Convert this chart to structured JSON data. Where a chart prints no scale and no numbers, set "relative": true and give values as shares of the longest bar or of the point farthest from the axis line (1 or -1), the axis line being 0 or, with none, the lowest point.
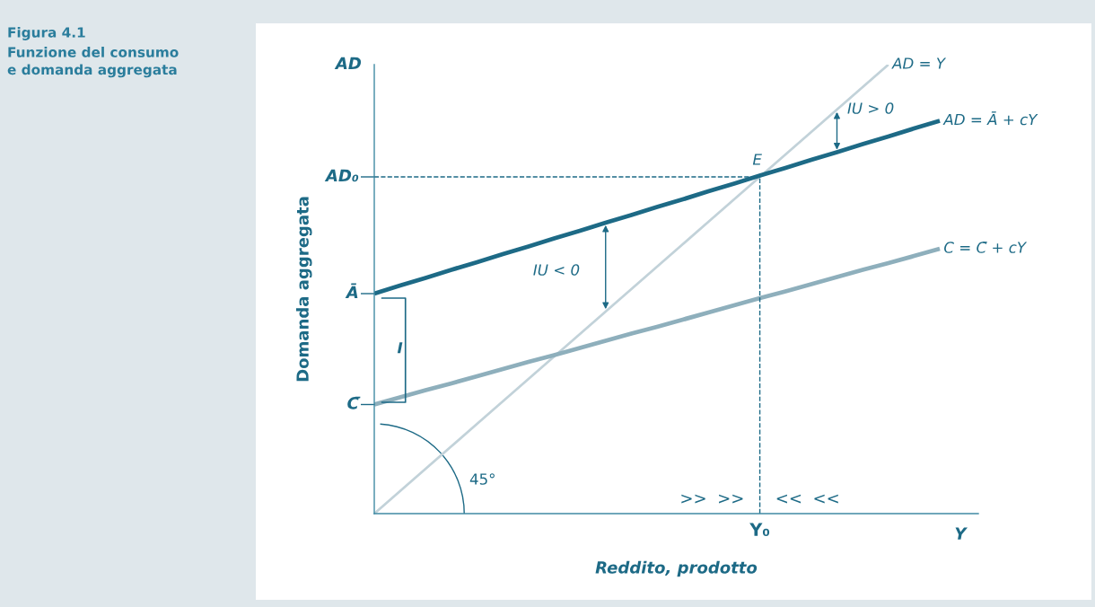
{
  "chart_data": {
    "type": "line",
    "title": "Figura 4.1",
    "subtitle": "Funzione del consumo\ne domanda aggregata",
    "xlabel": "Reddito, prodotto",
    "ylabel": "Domanda aggregata",
    "relative": true,
    "categories": [
      null,
      null,
      null,
      null,
      null,
      null,
      null,
      null,
      null,
      null,
      null,
      null,
      null,
      null,
      null,
      null,
      null,
      null,
      null,
      null,
      null,
      null,
      null,
      null
    ],
    "series": [
      {
        "name": "AD = Y",
        "color": "#c2d2d9",
        "values": [
          0,
          0.05,
          0.1,
          0.15,
          0.2,
          0.25,
          0.3,
          0.35,
          0.4,
          0.45,
          0.5,
          0.55,
          0.6,
          0.65,
          0.7,
          0.75,
          0.8,
          0.85,
          0.9,
          0.95,
          1.0,
          null,
          null,
          null
        ]
      },
      {
        "name": "AD = Ā + cY",
        "color": "#1d6a86",
        "values": [
          0.49,
          0.508,
          0.525,
          0.543,
          0.56,
          0.578,
          0.595,
          0.613,
          0.63,
          0.648,
          0.665,
          0.683,
          0.7,
          0.718,
          0.735,
          0.753,
          0.77,
          0.788,
          0.805,
          0.823,
          0.84,
          0.858,
          0.875,
          null
        ]
      },
      {
        "name": "C = C̄ + cY",
        "color": "#8eafbc",
        "values": [
          0.243,
          0.259,
          0.275,
          0.29,
          0.306,
          0.322,
          0.338,
          0.353,
          0.369,
          0.385,
          0.401,
          0.416,
          0.432,
          0.448,
          0.464,
          0.48,
          0.495,
          0.511,
          0.527,
          0.543,
          0.558,
          0.574,
          0.59,
          null
        ]
      }
    ],
    "ref_lines": [
      {
        "axis": "y",
        "value": 0.75,
        "label": "AD₀",
        "line_style": "dashed",
        "color": "#1d6a86"
      },
      {
        "axis": "x",
        "value": "Y₀",
        "line_style": "dashed",
        "color": "#1d6a86"
      }
    ],
    "annotations": [
      "Ā",
      "C̄",
      "E",
      "IU > 0",
      "IU < 0",
      "I",
      "45°",
      "AD",
      "Y",
      ">>  >>",
      "<<  <<"
    ],
    "line_style": "solid",
    "marker": "none",
    "legend": false
  }
}
